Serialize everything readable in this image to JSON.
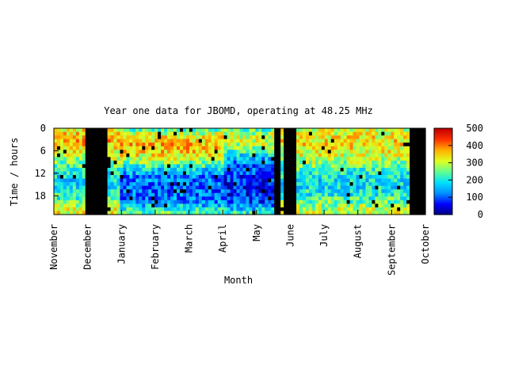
{
  "chart_data": {
    "type": "heatmap",
    "title": "Year one data for JBOMD, operating at 48.25 MHz",
    "xlabel": "Month",
    "ylabel": "Time / hours",
    "x_ticks": [
      "November",
      "December",
      "January",
      "February",
      "March",
      "April",
      "May",
      "June",
      "July",
      "August",
      "September",
      "October"
    ],
    "y_ticks": [
      0,
      6,
      12,
      18
    ],
    "y_range": [
      0,
      23
    ],
    "colorbar": {
      "ticks": [
        0,
        100,
        200,
        300,
        400,
        500
      ],
      "range": [
        0,
        500
      ]
    },
    "colormap": [
      "#000080",
      "#0000ff",
      "#0090ff",
      "#00e0ff",
      "#60ff90",
      "#e0ff20",
      "#ffb000",
      "#ff3000",
      "#c00000"
    ],
    "missing_color": "#000000",
    "no_data_periods_months": [
      [
        0.9,
        1.55
      ],
      [
        6.55,
        6.7
      ],
      [
        6.8,
        7.2
      ],
      [
        10.5,
        11.1
      ]
    ],
    "hourly_profile_by_season": {
      "Nov-Dec": [
        330,
        340,
        360,
        370,
        360,
        340,
        320,
        300,
        280,
        260,
        240,
        220,
        200,
        190,
        180,
        180,
        190,
        200,
        210,
        230,
        260,
        290,
        310,
        320
      ],
      "Jan-Mar": [
        250,
        300,
        330,
        350,
        360,
        360,
        350,
        330,
        300,
        260,
        220,
        180,
        150,
        130,
        120,
        110,
        110,
        110,
        110,
        120,
        140,
        170,
        210,
        240
      ],
      "Apr-May": [
        240,
        280,
        300,
        300,
        290,
        260,
        220,
        180,
        150,
        130,
        110,
        100,
        90,
        80,
        75,
        70,
        70,
        70,
        75,
        80,
        100,
        130,
        170,
        210
      ],
      "Jun-Sep": [
        300,
        320,
        330,
        340,
        340,
        330,
        320,
        310,
        290,
        270,
        250,
        230,
        210,
        200,
        190,
        190,
        190,
        200,
        210,
        230,
        250,
        270,
        290,
        300
      ]
    }
  }
}
